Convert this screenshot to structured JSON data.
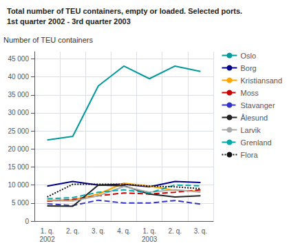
{
  "chart_data": {
    "type": "line",
    "title": "Total number of TEU containers, empty or loaded. Selected ports.",
    "subtitle": "1st quarter 2002 - 3rd quarter 2003",
    "ylabel": "Number of TEU containers",
    "categories": [
      "1. q.\n2002",
      "2. q.",
      "3. q.",
      "4. q.",
      "1. q.\n2003",
      "2. q.",
      "3. q."
    ],
    "ylim": [
      0,
      47000
    ],
    "yticks": [
      0,
      {
        "value": 5000,
        "label": "5 000"
      },
      {
        "value": 10000,
        "label": "10 000"
      },
      {
        "value": 15000,
        "label": "15 000"
      },
      {
        "value": 20000,
        "label": "20 000"
      },
      {
        "value": 25000,
        "label": "25 000"
      },
      {
        "value": 30000,
        "label": "30 000"
      },
      {
        "value": 35000,
        "label": "35 000"
      },
      {
        "value": 40000,
        "label": "40 000"
      },
      {
        "value": 45000,
        "label": "45 000"
      }
    ],
    "grid": true,
    "legend": "right",
    "series": [
      {
        "name": "Oslo",
        "color": "#009999",
        "line_style": "solid",
        "values": [
          22500,
          23500,
          37500,
          43000,
          39500,
          43000,
          41500
        ]
      },
      {
        "name": "Borg",
        "color": "#00008B",
        "line_style": "solid",
        "values": [
          9700,
          11000,
          10000,
          10200,
          9500,
          11000,
          10700
        ]
      },
      {
        "name": "Kristiansand",
        "color": "#FFA500",
        "line_style": "solid",
        "values": [
          5800,
          5900,
          7500,
          10500,
          9700,
          8500,
          8300
        ]
      },
      {
        "name": "Moss",
        "color": "#CC0000",
        "line_style": "dashed",
        "values": [
          5500,
          6000,
          7000,
          7800,
          7500,
          8000,
          8700
        ]
      },
      {
        "name": "Stavanger",
        "color": "#3333CC",
        "line_style": "dashed",
        "values": [
          4800,
          4300,
          5800,
          5000,
          5000,
          5700,
          4700
        ]
      },
      {
        "name": "Ålesund",
        "color": "#222222",
        "line_style": "solid",
        "values": [
          4200,
          4100,
          10000,
          9800,
          7500,
          6700,
          7000
        ]
      },
      {
        "name": "Larvik",
        "color": "#AAAAAA",
        "line_style": "solid",
        "values": [
          5700,
          5600,
          7000,
          9600,
          8000,
          8700,
          8000
        ]
      },
      {
        "name": "Grenland",
        "color": "#00AAAA",
        "line_style": "dashed",
        "values": [
          6200,
          6500,
          8000,
          8700,
          7800,
          10000,
          9800
        ]
      },
      {
        "name": "Flora",
        "color": "#111111",
        "line_style": "dotted",
        "values": [
          6700,
          10200,
          10200,
          10200,
          9700,
          9500,
          9000
        ]
      }
    ]
  }
}
